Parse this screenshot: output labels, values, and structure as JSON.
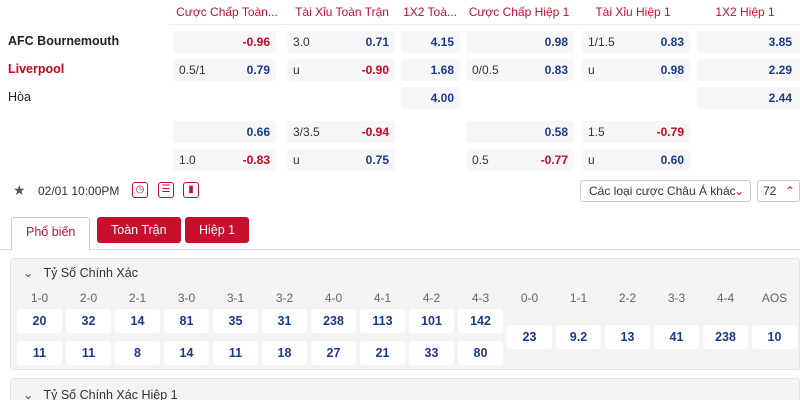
{
  "headers": [
    "Cược Chấp Toàn...",
    "Tài Xỉu Toàn Trận",
    "1X2 Toà...",
    "Cược Chấp Hiệp 1",
    "Tài Xỉu Hiệp 1",
    "1X2 Hiệp 1"
  ],
  "teams": {
    "home": "AFC Bournemouth",
    "away": "Liverpool",
    "draw": "Hòa"
  },
  "rows": {
    "r1": {
      "hcp_ft_val": "-0.96",
      "ou_ft_line": "3.0",
      "ou_ft_val": "0.71",
      "x12_ft": "4.15",
      "hcp_h1_val": "0.98",
      "ou_h1_line": "1/1.5",
      "ou_h1_val": "0.83",
      "x12_h1": "3.85"
    },
    "r2": {
      "hcp_ft_line": "0.5/1",
      "hcp_ft_val": "0.79",
      "ou_ft_line": "u",
      "ou_ft_val": "-0.90",
      "x12_ft": "1.68",
      "hcp_h1_line": "0/0.5",
      "hcp_h1_val": "0.83",
      "ou_h1_line": "u",
      "ou_h1_val": "0.98",
      "x12_h1": "2.29"
    },
    "r3": {
      "x12_ft": "4.00",
      "x12_h1": "2.44"
    },
    "r4": {
      "hcp_ft_val": "0.66",
      "ou_ft_line": "3/3.5",
      "ou_ft_val": "-0.94",
      "hcp_h1_val": "0.58",
      "ou_h1_line": "1.5",
      "ou_h1_val": "-0.79"
    },
    "r5": {
      "hcp_ft_line": "1.0",
      "hcp_ft_val": "-0.83",
      "ou_ft_line": "u",
      "ou_ft_val": "0.75",
      "hcp_h1_line": "0.5",
      "hcp_h1_val": "-0.77",
      "ou_h1_line": "u",
      "ou_h1_val": "0.60"
    }
  },
  "info": {
    "datetime": "02/01 10:00PM",
    "market_select": "Các loại cược Châu Á khác",
    "count": "72"
  },
  "icons": {
    "star": "star-icon",
    "clock": "stopwatch-icon",
    "list": "list-icon",
    "stats": "bar-chart-icon"
  },
  "tabs": [
    "Phổ biến",
    "Toàn Trận",
    "Hiệp 1"
  ],
  "section": {
    "title": "Tỷ Số Chính Xác",
    "labels": [
      "1-0",
      "2-0",
      "2-1",
      "3-0",
      "3-1",
      "3-2",
      "4-0",
      "4-1",
      "4-2",
      "4-3",
      "0-0",
      "1-1",
      "2-2",
      "3-3",
      "4-4",
      "AOS"
    ],
    "home_row": [
      "20",
      "32",
      "14",
      "81",
      "35",
      "31",
      "238",
      "113",
      "101",
      "142"
    ],
    "away_row": [
      "11",
      "11",
      "8",
      "14",
      "11",
      "18",
      "27",
      "21",
      "33",
      "80"
    ],
    "draw_row": [
      "23",
      "9.2",
      "13",
      "41",
      "238",
      "10"
    ]
  },
  "section2": {
    "title": "Tỷ Số Chính Xác Hiệp 1"
  },
  "colors": {
    "accent": "#c8102e",
    "odds_blue": "#1a3a8a",
    "negative_red": "#d0021b"
  }
}
